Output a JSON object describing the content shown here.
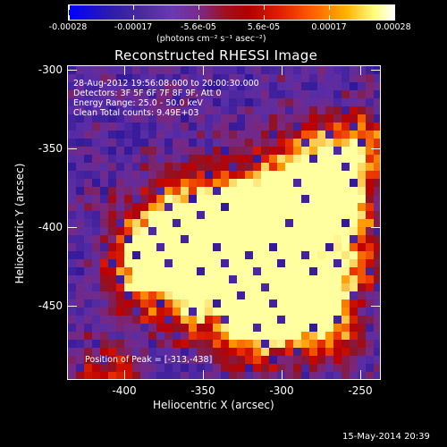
{
  "colorbar": {
    "labels": [
      "-0.00028",
      "-0.00017",
      "-5.6e-05",
      "5.6e-05",
      "0.00017",
      "0.00028"
    ],
    "units": "(photons cm⁻² s⁻¹ asec⁻²)"
  },
  "title": "Reconstructed RHESSI Image",
  "info": {
    "time_range": "28-Aug-2012 19:56:08.000 to 20:00:30.000",
    "detectors": "Detectors: 3F 5F 6F 7F 8F 9F, Att 0",
    "energy": "Energy Range: 25.0 - 50.0 keV",
    "clean": "Clean     Total counts: 9.49E+03",
    "peak": "Position of Peak = [-313,-438]"
  },
  "axes": {
    "xlabel": "Heliocentric X (arcsec)",
    "ylabel": "Heliocentric Y (arcsec)",
    "xticks": [
      "-400",
      "-350",
      "-300",
      "-250"
    ],
    "yticks": [
      "-300",
      "-350",
      "-400",
      "-450"
    ]
  },
  "footer": "15-May-2014 20:39"
}
